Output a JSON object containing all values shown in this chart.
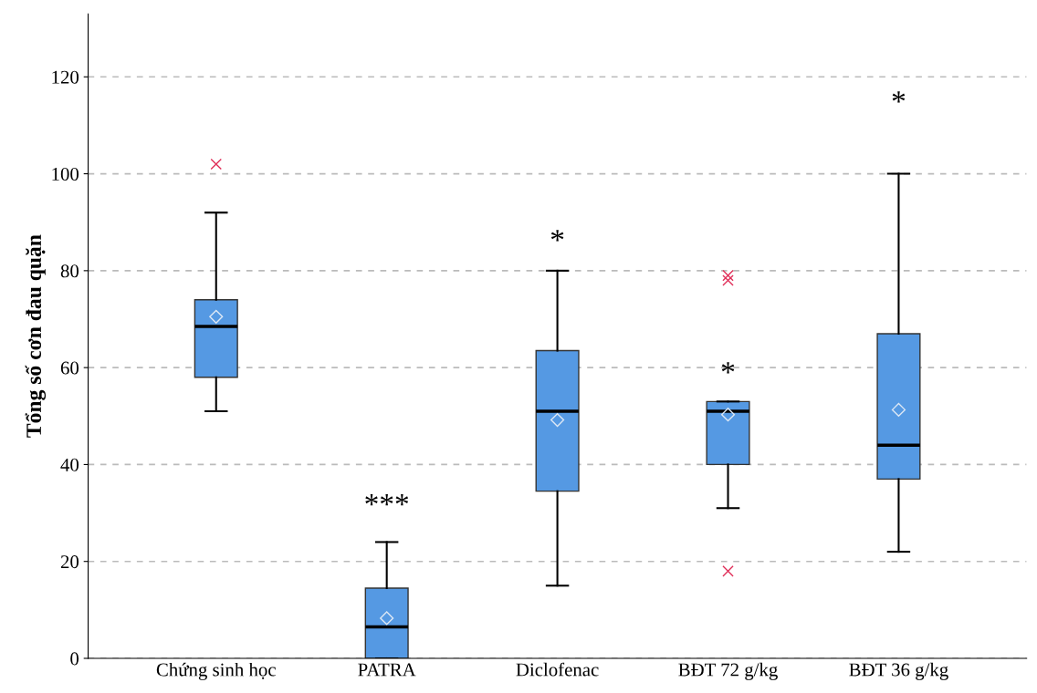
{
  "chart_data": {
    "type": "box",
    "ylabel": "Tổng số cơn đau quặn",
    "categories": [
      "Chứng sinh học",
      "PATRA",
      "Diclofenac",
      "BĐT 72 g/kg",
      "BĐT 36 g/kg"
    ],
    "series": [
      {
        "color": "#5599e3",
        "boxes": [
          {
            "low": 51,
            "q1": 58,
            "median": 68.5,
            "q3": 74,
            "high": 92,
            "mean": 70.5,
            "outliers": [
              102
            ]
          },
          {
            "low": 0,
            "q1": 0,
            "median": 6.5,
            "q3": 14.5,
            "high": 24,
            "mean": 8.3
          },
          {
            "low": 15,
            "q1": 34.5,
            "median": 51,
            "q3": 63.5,
            "high": 80,
            "mean": 49.2
          },
          {
            "low": 31,
            "q1": 40,
            "median": 51,
            "q3": 53,
            "high": 53,
            "mean": 50.3,
            "outliers": [
              79,
              78,
              18
            ]
          },
          {
            "low": 22,
            "q1": 37,
            "median": 44,
            "q3": 67,
            "high": 100,
            "mean": 51.3
          }
        ]
      }
    ],
    "ylim": [
      0,
      133
    ],
    "yticks": [
      0,
      20,
      40,
      60,
      80,
      100,
      120
    ],
    "grid": "y",
    "annotations": [
      "***",
      "*",
      "*",
      "*"
    ]
  }
}
